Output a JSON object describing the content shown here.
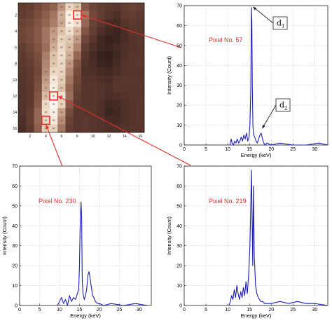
{
  "chart_data": [
    {
      "type": "heatmap",
      "grid_size": 16,
      "xticks": [
        2,
        4,
        6,
        8,
        10,
        12,
        14,
        16
      ],
      "yticks": [
        2,
        4,
        6,
        8,
        10,
        12,
        14,
        16
      ],
      "colormap": [
        "#1c1010",
        "#3d2520",
        "#5e3a30",
        "#8a5a48",
        "#b9907c",
        "#dcc0a8",
        "#f4e8d8",
        "#ffffff"
      ],
      "highlight_color": "#e0302a",
      "highlights": [
        {
          "row": 2,
          "col": 8,
          "pixel": 57
        },
        {
          "row": 12,
          "col": 5,
          "pixel": 219
        },
        {
          "row": 15,
          "col": 4,
          "pixel": 230
        }
      ],
      "values": [
        [
          0.28,
          0.3,
          0.35,
          0.4,
          0.45,
          0.58,
          0.8,
          0.72,
          0.42,
          0.33,
          0.3,
          0.28,
          0.26,
          0.3,
          0.32,
          0.3
        ],
        [
          0.3,
          0.32,
          0.38,
          0.44,
          0.5,
          0.66,
          0.9,
          0.88,
          0.5,
          0.35,
          0.3,
          0.25,
          0.22,
          0.28,
          0.3,
          0.28
        ],
        [
          0.32,
          0.35,
          0.4,
          0.46,
          0.52,
          0.64,
          0.9,
          0.82,
          0.46,
          0.32,
          0.26,
          0.2,
          0.18,
          0.24,
          0.28,
          0.26
        ],
        [
          0.34,
          0.36,
          0.42,
          0.5,
          0.6,
          0.72,
          0.82,
          0.68,
          0.4,
          0.3,
          0.22,
          0.16,
          0.14,
          0.2,
          0.26,
          0.25
        ],
        [
          0.33,
          0.36,
          0.42,
          0.5,
          0.62,
          0.78,
          0.74,
          0.6,
          0.34,
          0.26,
          0.16,
          0.12,
          0.14,
          0.2,
          0.24,
          0.26
        ],
        [
          0.3,
          0.34,
          0.4,
          0.48,
          0.66,
          0.8,
          0.7,
          0.54,
          0.3,
          0.22,
          0.16,
          0.14,
          0.18,
          0.22,
          0.24,
          0.25
        ],
        [
          0.28,
          0.32,
          0.38,
          0.52,
          0.72,
          0.82,
          0.66,
          0.46,
          0.26,
          0.18,
          0.12,
          0.1,
          0.16,
          0.22,
          0.26,
          0.26
        ],
        [
          0.27,
          0.3,
          0.36,
          0.54,
          0.74,
          0.8,
          0.6,
          0.4,
          0.24,
          0.2,
          0.14,
          0.12,
          0.18,
          0.24,
          0.26,
          0.27
        ],
        [
          0.26,
          0.28,
          0.34,
          0.56,
          0.8,
          0.78,
          0.54,
          0.36,
          0.22,
          0.22,
          0.18,
          0.16,
          0.2,
          0.24,
          0.25,
          0.26
        ],
        [
          0.25,
          0.28,
          0.36,
          0.6,
          0.86,
          0.76,
          0.5,
          0.34,
          0.24,
          0.24,
          0.22,
          0.2,
          0.24,
          0.26,
          0.26,
          0.26
        ],
        [
          0.24,
          0.28,
          0.38,
          0.64,
          0.9,
          0.72,
          0.46,
          0.32,
          0.26,
          0.26,
          0.24,
          0.22,
          0.26,
          0.26,
          0.26,
          0.26
        ],
        [
          0.24,
          0.28,
          0.4,
          0.7,
          0.92,
          0.84,
          0.48,
          0.3,
          0.26,
          0.26,
          0.24,
          0.2,
          0.22,
          0.24,
          0.26,
          0.26
        ],
        [
          0.24,
          0.28,
          0.42,
          0.8,
          0.94,
          0.78,
          0.42,
          0.28,
          0.26,
          0.26,
          0.22,
          0.16,
          0.18,
          0.22,
          0.24,
          0.26
        ],
        [
          0.24,
          0.3,
          0.46,
          0.82,
          0.9,
          0.62,
          0.36,
          0.26,
          0.26,
          0.26,
          0.22,
          0.14,
          0.16,
          0.22,
          0.24,
          0.26
        ],
        [
          0.22,
          0.3,
          0.46,
          0.8,
          0.86,
          0.56,
          0.32,
          0.26,
          0.28,
          0.26,
          0.24,
          0.18,
          0.18,
          0.22,
          0.24,
          0.26
        ],
        [
          0.2,
          0.28,
          0.44,
          0.76,
          0.78,
          0.5,
          0.3,
          0.26,
          0.28,
          0.26,
          0.24,
          0.22,
          0.22,
          0.24,
          0.26,
          0.26
        ]
      ]
    },
    {
      "type": "line",
      "label": "Pixel No. 57",
      "xlabel": "Energy (keV)",
      "ylabel": "Intensity (Count)",
      "xlim": [
        0,
        33
      ],
      "ylim": [
        0,
        70
      ],
      "xticks": [
        0,
        5,
        10,
        15,
        20,
        25,
        30
      ],
      "yticks": [
        0,
        10,
        20,
        30,
        40,
        50,
        60,
        70
      ],
      "grid": true,
      "color": "#1f1fb4",
      "annotations": [
        {
          "text": "d",
          "sub": "1",
          "x": 15.6,
          "y": 69
        },
        {
          "text": "d",
          "sub": "2",
          "x": 17.7,
          "y": 8
        }
      ],
      "x": [
        10.5,
        10.8,
        11.0,
        11.3,
        11.6,
        11.9,
        12.2,
        12.5,
        12.8,
        13.1,
        13.4,
        13.7,
        14.0,
        14.3,
        14.6,
        14.9,
        15.1,
        15.3,
        15.45,
        15.55,
        15.65,
        15.8,
        16.0,
        16.2,
        16.5,
        16.8,
        17.1,
        17.4,
        17.7,
        18.0,
        18.3,
        18.6,
        19.0,
        20.0,
        22.0,
        25.0,
        28.0,
        31.0,
        33.0
      ],
      "y": [
        0,
        3,
        1,
        0,
        2,
        1,
        3,
        1,
        2,
        4,
        2,
        5,
        3,
        6,
        2,
        4,
        10,
        28,
        69,
        62,
        30,
        9,
        5,
        4,
        2,
        1,
        3,
        5,
        6,
        3,
        1,
        0,
        1,
        0,
        1,
        0,
        0,
        1,
        0
      ]
    },
    {
      "type": "line",
      "label": "Pixel No. 230",
      "xlabel": "Energy (keV)",
      "ylabel": "Intensity (Count)",
      "xlim": [
        0,
        33
      ],
      "ylim": [
        0,
        70
      ],
      "xticks": [
        0,
        5,
        10,
        15,
        20,
        25,
        30
      ],
      "yticks": [
        0,
        10,
        20,
        30,
        40,
        50,
        60,
        70
      ],
      "grid": true,
      "color": "#1f1fb4",
      "x": [
        9.5,
        10.0,
        10.5,
        11.0,
        11.5,
        12.0,
        12.5,
        13.0,
        13.5,
        14.0,
        14.5,
        14.8,
        15.0,
        15.2,
        15.4,
        15.55,
        15.7,
        15.9,
        16.2,
        16.5,
        16.8,
        17.1,
        17.4,
        17.7,
        18.0,
        18.3,
        18.6,
        19.0,
        19.5,
        20.0,
        21.0,
        23.0,
        26.0,
        29.0,
        32.0
      ],
      "y": [
        0,
        2,
        4,
        1,
        3,
        0,
        5,
        2,
        4,
        3,
        6,
        8,
        20,
        42,
        52,
        44,
        12,
        6,
        3,
        5,
        8,
        15,
        17,
        13,
        9,
        5,
        4,
        2,
        1,
        1,
        0,
        1,
        0,
        1,
        0
      ]
    },
    {
      "type": "line",
      "label": "Pixel No. 219",
      "xlabel": "Energy (keV)",
      "ylabel": "Intensity (Count)",
      "xlim": [
        0,
        33
      ],
      "ylim": [
        0,
        70
      ],
      "xticks": [
        0,
        5,
        10,
        15,
        20,
        25,
        30
      ],
      "yticks": [
        0,
        10,
        20,
        30,
        40,
        50,
        60,
        70
      ],
      "grid": true,
      "color": "#1f1fb4",
      "x": [
        10.3,
        10.6,
        10.9,
        11.2,
        11.5,
        11.8,
        12.1,
        12.4,
        12.7,
        13.0,
        13.3,
        13.6,
        13.9,
        14.2,
        14.5,
        14.8,
        15.1,
        15.3,
        15.45,
        15.6,
        15.75,
        15.9,
        16.1,
        16.4,
        16.7,
        17.0,
        17.3,
        17.6,
        18.0,
        18.5,
        19.0,
        20.0,
        22.0,
        24.0,
        26.0,
        28.0,
        30.0,
        33.0
      ],
      "y": [
        0,
        2,
        5,
        3,
        8,
        4,
        10,
        6,
        3,
        7,
        4,
        9,
        5,
        12,
        6,
        15,
        30,
        50,
        68,
        45,
        20,
        60,
        25,
        10,
        6,
        4,
        3,
        2,
        2,
        1,
        1,
        1,
        2,
        1,
        2,
        1,
        1,
        0
      ]
    }
  ]
}
